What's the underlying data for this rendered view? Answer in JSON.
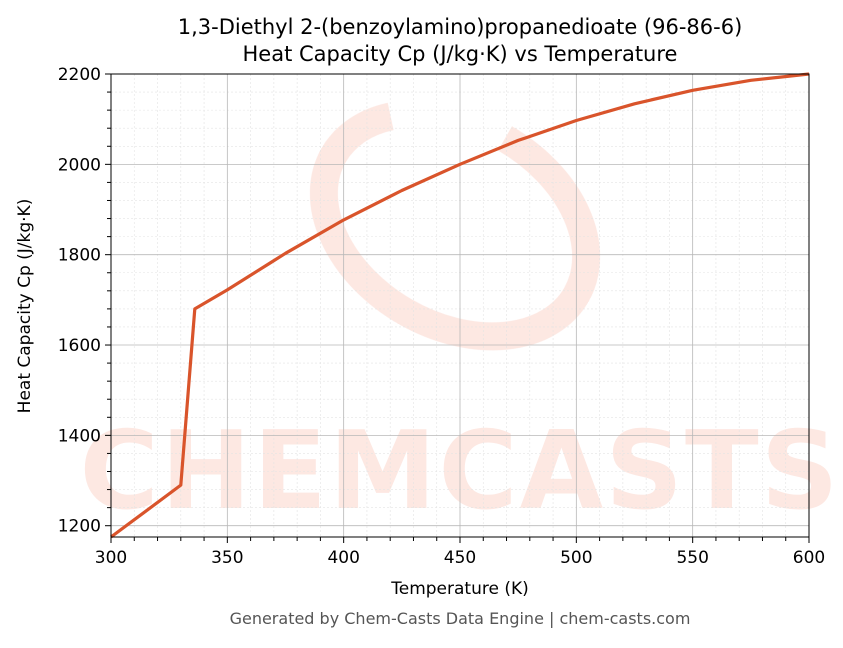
{
  "chart_data": {
    "type": "line",
    "title": "1,3-Diethyl 2-(benzoylamino)propanedioate (96-86-6)",
    "subtitle": "Heat Capacity Cp (J/kg·K) vs Temperature",
    "xlabel": "Temperature (K)",
    "ylabel": "Heat Capacity Cp (J/kg·K)",
    "xlim": [
      300,
      600
    ],
    "ylim": [
      1175,
      2200
    ],
    "xticks": [
      300,
      350,
      400,
      450,
      500,
      550,
      600
    ],
    "yticks": [
      1200,
      1400,
      1600,
      1800,
      2000,
      2200
    ],
    "grid": true,
    "series": [
      {
        "color": "#d9542b",
        "x": [
          300,
          330,
          336,
          350,
          375,
          400,
          425,
          450,
          475,
          500,
          525,
          550,
          575,
          600
        ],
        "y": [
          1175,
          1290,
          1680,
          1722,
          1803,
          1877,
          1942,
          2000,
          2053,
          2097,
          2134,
          2164,
          2186,
          2200
        ]
      }
    ]
  },
  "watermark": {
    "text": "CHEMCASTS",
    "color": "#f9c9bd"
  },
  "footer": {
    "text": "Generated by Chem-Casts Data Engine | chem-casts.com"
  }
}
